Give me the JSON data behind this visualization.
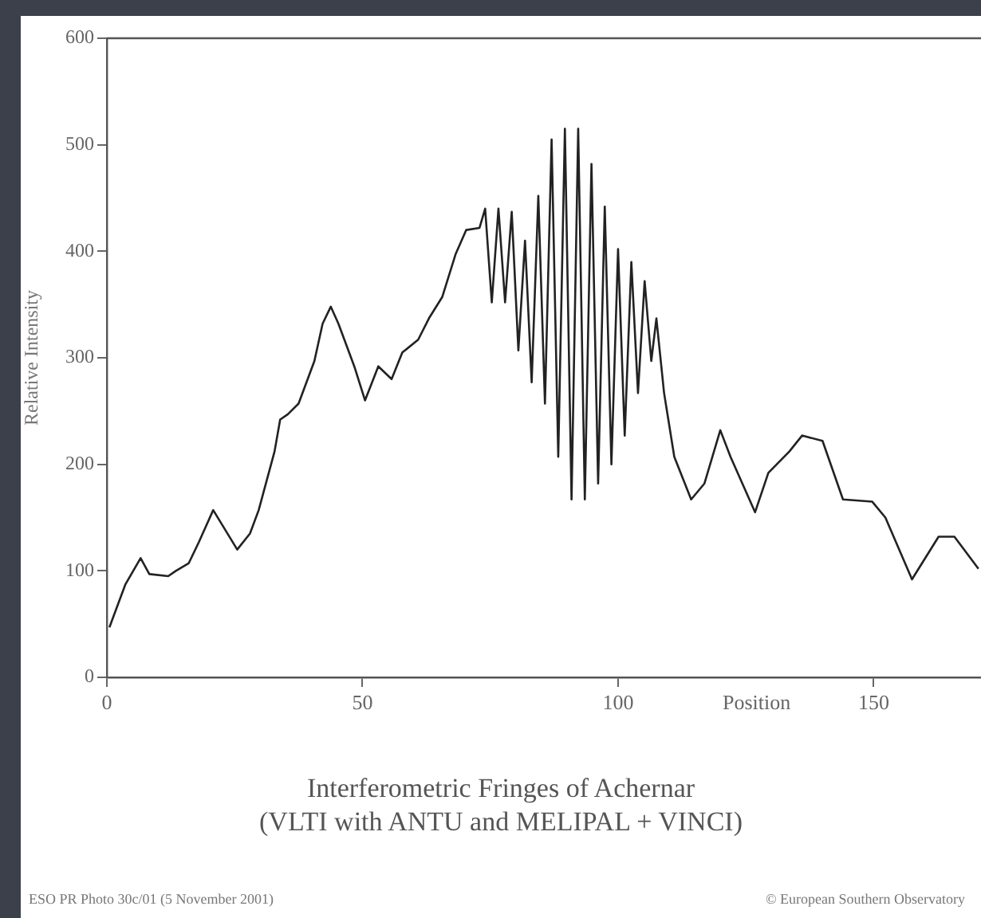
{
  "chart_data": {
    "type": "line",
    "title": "Interferometric Fringes of Achernar",
    "subtitle": "(VLTI with ANTU and MELIPAL + VINCI)",
    "xlabel": "Position",
    "ylabel": "Relative Intensity",
    "annotations": [
      "ESO PR Photo 30c/01 (5 November 2001)",
      "© European Southern Observatory"
    ],
    "xlim": [
      0,
      171
    ],
    "ylim": [
      0,
      600
    ],
    "xticks": [
      0,
      50,
      100,
      150
    ],
    "yticks": [
      0,
      100,
      200,
      300,
      400,
      500,
      600
    ],
    "grid": false,
    "legend": false,
    "marker": "none",
    "line_style": "solid",
    "series": [
      {
        "color": "#222222",
        "x": [
          0.5,
          3.6,
          6.6,
          8.3,
          12,
          13.5,
          16,
          18,
          20.8,
          25.5,
          28,
          29.7,
          32.8,
          33.9,
          35.4,
          37.5,
          40.6,
          42.2,
          43.8,
          45.3,
          48.4,
          50.5,
          53.1,
          55.7,
          57.8,
          60.9,
          63,
          65.6,
          68.2,
          70.3,
          72.9,
          74,
          75.3,
          76.6,
          77.9,
          79.2,
          80.5,
          81.8,
          83.1,
          84.4,
          85.7,
          87,
          88.3,
          89.6,
          90.9,
          92.2,
          93.5,
          94.8,
          96.1,
          97.4,
          98.7,
          100,
          101.3,
          102.6,
          103.9,
          105.2,
          106.5,
          107.5,
          109,
          111,
          114.3,
          116.9,
          120,
          122,
          126.8,
          129.4,
          133.5,
          136,
          140,
          144,
          149.7,
          152.3,
          157.5,
          162.7,
          165.8,
          170.5
        ],
        "values": [
          47,
          87,
          112,
          97,
          95,
          100,
          107,
          127,
          157,
          120,
          135,
          157,
          212,
          242,
          247,
          257,
          297,
          332,
          348,
          332,
          292,
          260,
          292,
          280,
          305,
          317,
          337,
          357,
          397,
          420,
          422,
          440,
          352,
          440,
          352,
          437,
          307,
          410,
          277,
          452,
          257,
          505,
          207,
          515,
          167,
          515,
          167,
          482,
          182,
          442,
          200,
          402,
          227,
          390,
          267,
          372,
          297,
          337,
          267,
          207,
          167,
          182,
          232,
          207,
          155,
          192,
          212,
          227,
          222,
          167,
          165,
          150,
          92,
          132,
          132,
          102
        ]
      }
    ]
  }
}
